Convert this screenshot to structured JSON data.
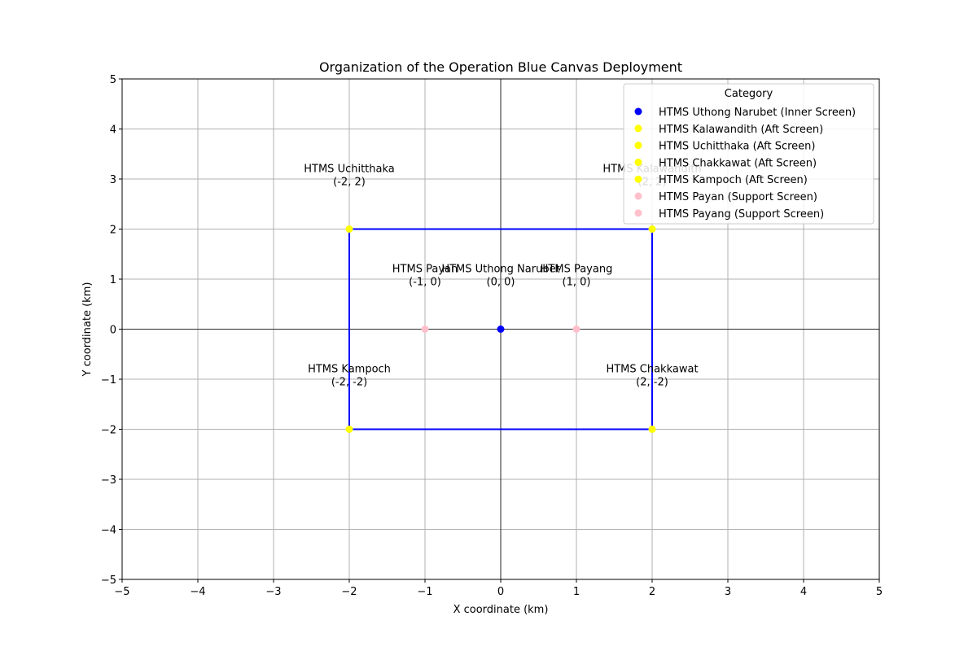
{
  "chart_data": {
    "type": "scatter",
    "title": "Organization of the Operation Blue Canvas Deployment",
    "xlabel": "X coordinate (km)",
    "ylabel": "Y coordinate (km)",
    "xlim": [
      -5,
      5
    ],
    "ylim": [
      -5,
      5
    ],
    "xticks": [
      -5,
      -4,
      -3,
      -2,
      -1,
      0,
      1,
      2,
      3,
      4,
      5
    ],
    "yticks": [
      -5,
      -4,
      -3,
      -2,
      -1,
      0,
      1,
      2,
      3,
      4,
      5
    ],
    "grid": true,
    "legend": {
      "title": "Category",
      "placement": "top-right"
    },
    "series": [
      {
        "name": "HTMS Uthong Narubet (Inner Screen)",
        "color": "#0000ff",
        "points": [
          {
            "x": 0,
            "y": 0,
            "label": "HTMS Uthong Narubet",
            "coord": "(0, 0)"
          }
        ]
      },
      {
        "name": "HTMS Kalawandith (Aft Screen)",
        "color": "#ffff00",
        "points": [
          {
            "x": 2,
            "y": 2,
            "label": "HTMS Kalawandith",
            "coord": "(2, 2)"
          }
        ]
      },
      {
        "name": "HTMS Uchitthaka (Aft Screen)",
        "color": "#ffff00",
        "points": [
          {
            "x": -2,
            "y": 2,
            "label": "HTMS Uchitthaka",
            "coord": "(-2, 2)"
          }
        ]
      },
      {
        "name": "HTMS Chakkawat (Aft Screen)",
        "color": "#ffff00",
        "points": [
          {
            "x": 2,
            "y": -2,
            "label": "HTMS Chakkawat",
            "coord": "(2, -2)"
          }
        ]
      },
      {
        "name": "HTMS Kampoch (Aft Screen)",
        "color": "#ffff00",
        "points": [
          {
            "x": -2,
            "y": -2,
            "label": "HTMS Kampoch",
            "coord": "(-2, -2)"
          }
        ]
      },
      {
        "name": "HTMS Payan (Support Screen)",
        "color": "#ffc0cb",
        "points": [
          {
            "x": -1,
            "y": 0,
            "label": "HTMS Payan",
            "coord": "(-1, 0)"
          }
        ]
      },
      {
        "name": "HTMS Payang (Support Screen)",
        "color": "#ffc0cb",
        "points": [
          {
            "x": 1,
            "y": 0,
            "label": "HTMS Payang",
            "coord": "(1, 0)"
          }
        ]
      }
    ],
    "formation_box": {
      "color": "#0000ff",
      "x": [
        -2,
        2,
        2,
        -2,
        -2
      ],
      "y": [
        2,
        2,
        -2,
        -2,
        2
      ]
    }
  }
}
